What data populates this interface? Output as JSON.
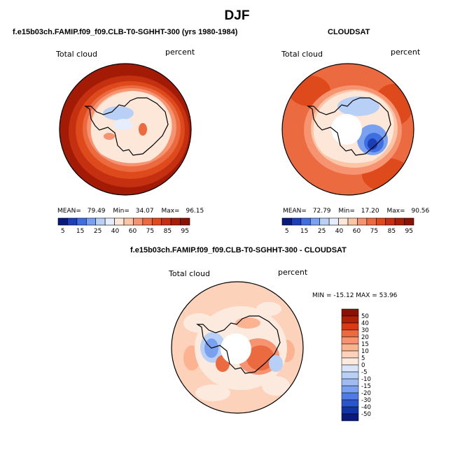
{
  "page": {
    "title": "DJF",
    "colors": {
      "dark_red": "#a31a05",
      "red": "#d83a14",
      "light": "#fde6d8",
      "blue": "#4f6ed8",
      "black": "#000000"
    }
  },
  "panels": [
    {
      "id": "model",
      "header": "f.e15b03ch.FAMIP.f09_f09.CLB-T0-SGHHT-300 (yrs 1980-1984)",
      "field": "Total cloud",
      "units": "percent",
      "stats": {
        "mean_label": "MEAN=",
        "mean": "79.49",
        "min_label": "Min=",
        "min": "34.07",
        "max_label": "Max=",
        "max": "96.15"
      }
    },
    {
      "id": "obs",
      "header": "CLOUDSAT",
      "field": "Total cloud",
      "units": "percent",
      "stats": {
        "mean_label": "MEAN=",
        "mean": "72.79",
        "min_label": "Min=",
        "min": "17.20",
        "max_label": "Max=",
        "max": "90.56"
      }
    },
    {
      "id": "diff",
      "header": "f.e15b03ch.FAMIP.f09_f09.CLB-T0-SGHHT-300 - CLOUDSAT",
      "field": "Total cloud",
      "units": "percent",
      "stats_text": "MIN = -15.12 MAX =  53.96"
    }
  ],
  "colorbars": {
    "abs": {
      "ticks": [
        "5",
        "15",
        "25",
        "40",
        "60",
        "75",
        "85",
        "95"
      ],
      "colors": [
        "#0a1a7a",
        "#1c3fb8",
        "#3f6ee0",
        "#7aa1ef",
        "#b8cff6",
        "#e6eefb",
        "#fde7d8",
        "#fbc5a6",
        "#f69370",
        "#ec6a40",
        "#de4a1c",
        "#c43010",
        "#a81d06",
        "#8a1204"
      ]
    },
    "diff": {
      "ticks": [
        "50",
        "40",
        "30",
        "20",
        "15",
        "10",
        "5",
        "0",
        "-5",
        "-10",
        "-15",
        "-20",
        "-30",
        "-40",
        "-50"
      ],
      "colors": [
        "#8a1204",
        "#b01f06",
        "#d83a14",
        "#ec6a40",
        "#f69370",
        "#fbb391",
        "#fdd2bb",
        "#fdeadf",
        "#d9e4f9",
        "#b8cff6",
        "#9fbcf2",
        "#7aa1ef",
        "#4f7be4",
        "#2a55cc",
        "#1235a6",
        "#0a1a7a"
      ]
    }
  },
  "chart_data": [
    {
      "type": "heatmap",
      "title": "f.e15b03ch.FAMIP.f09_f09.CLB-T0-SGHHT-300 (yrs 1980-1984)",
      "variable": "Total cloud",
      "units": "percent",
      "projection": "south polar stereographic",
      "mean": 79.49,
      "min": 34.07,
      "max": 96.15,
      "levels": [
        5,
        15,
        25,
        40,
        60,
        75,
        85,
        95
      ]
    },
    {
      "type": "heatmap",
      "title": "CLOUDSAT",
      "variable": "Total cloud",
      "units": "percent",
      "projection": "south polar stereographic",
      "mean": 72.79,
      "min": 17.2,
      "max": 90.56,
      "levels": [
        5,
        15,
        25,
        40,
        60,
        75,
        85,
        95
      ]
    },
    {
      "type": "heatmap",
      "title": "f.e15b03ch.FAMIP.f09_f09.CLB-T0-SGHHT-300 - CLOUDSAT",
      "variable": "Total cloud",
      "units": "percent",
      "projection": "south polar stereographic",
      "min": -15.12,
      "max": 53.96,
      "levels": [
        -50,
        -40,
        -30,
        -20,
        -15,
        -10,
        -5,
        0,
        5,
        10,
        15,
        20,
        30,
        40,
        50
      ]
    }
  ]
}
